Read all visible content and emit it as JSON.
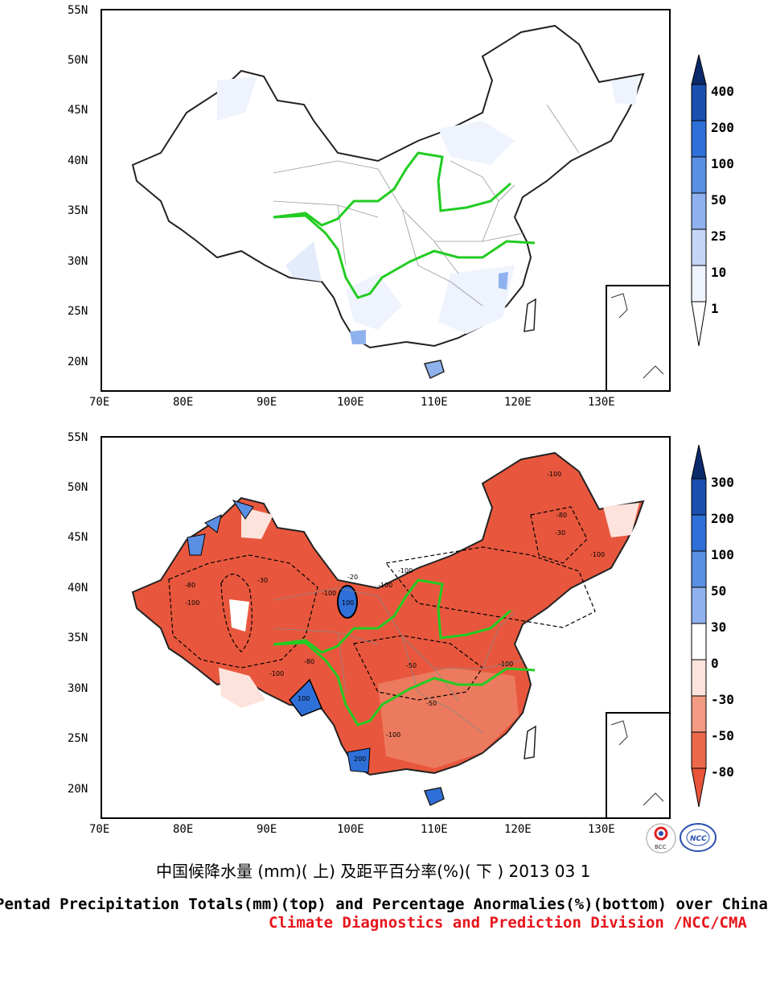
{
  "top_map": {
    "lat_ticks": [
      "55N",
      "50N",
      "45N",
      "40N",
      "35N",
      "30N",
      "25N",
      "20N"
    ],
    "lon_ticks": [
      "70E",
      "80E",
      "90E",
      "100E",
      "110E",
      "120E",
      "130E"
    ],
    "colorbar": {
      "labels": [
        "400",
        "200",
        "100",
        "50",
        "25",
        "10",
        "1"
      ],
      "colors": [
        "#0a2a6b",
        "#1a4fb0",
        "#2f6fd8",
        "#5b8fe3",
        "#8fb2ee",
        "#c4d6f6",
        "#ffffff"
      ]
    }
  },
  "bottom_map": {
    "lat_ticks": [
      "55N",
      "50N",
      "45N",
      "40N",
      "35N",
      "30N",
      "25N",
      "20N"
    ],
    "lon_ticks": [
      "70E",
      "80E",
      "90E",
      "100E",
      "110E",
      "120E",
      "130E"
    ],
    "colorbar": {
      "labels": [
        "300",
        "200",
        "100",
        "50",
        "30",
        "0",
        "-30",
        "-50",
        "-80"
      ],
      "colors": [
        "#0a2a6b",
        "#1a4fb0",
        "#2f6fd8",
        "#5b8fe3",
        "#8fb2ee",
        "#ffffff",
        "#fde3dc",
        "#f29a82",
        "#ec6a4c",
        "#e8543a"
      ]
    },
    "contour_labels": [
      "-100",
      "-80",
      "-50",
      "-30",
      "100",
      "200",
      "-20"
    ]
  },
  "title": {
    "cn": "中国候降水量 (mm)( 上) 及距平百分率(%)( 下 ) 2013 03 1",
    "en": "Pentad Precipitation Totals(mm)(top) and Percentage Anormalies(%)(bottom) over China",
    "credit": "Climate Diagnostics and Prediction Division /NCC/CMA"
  },
  "logos": [
    "BCC",
    "NCC"
  ],
  "colors": {
    "river": "#22cc22",
    "anomaly_fill": "#e8573d",
    "precip_fill": "#eef3fd"
  }
}
